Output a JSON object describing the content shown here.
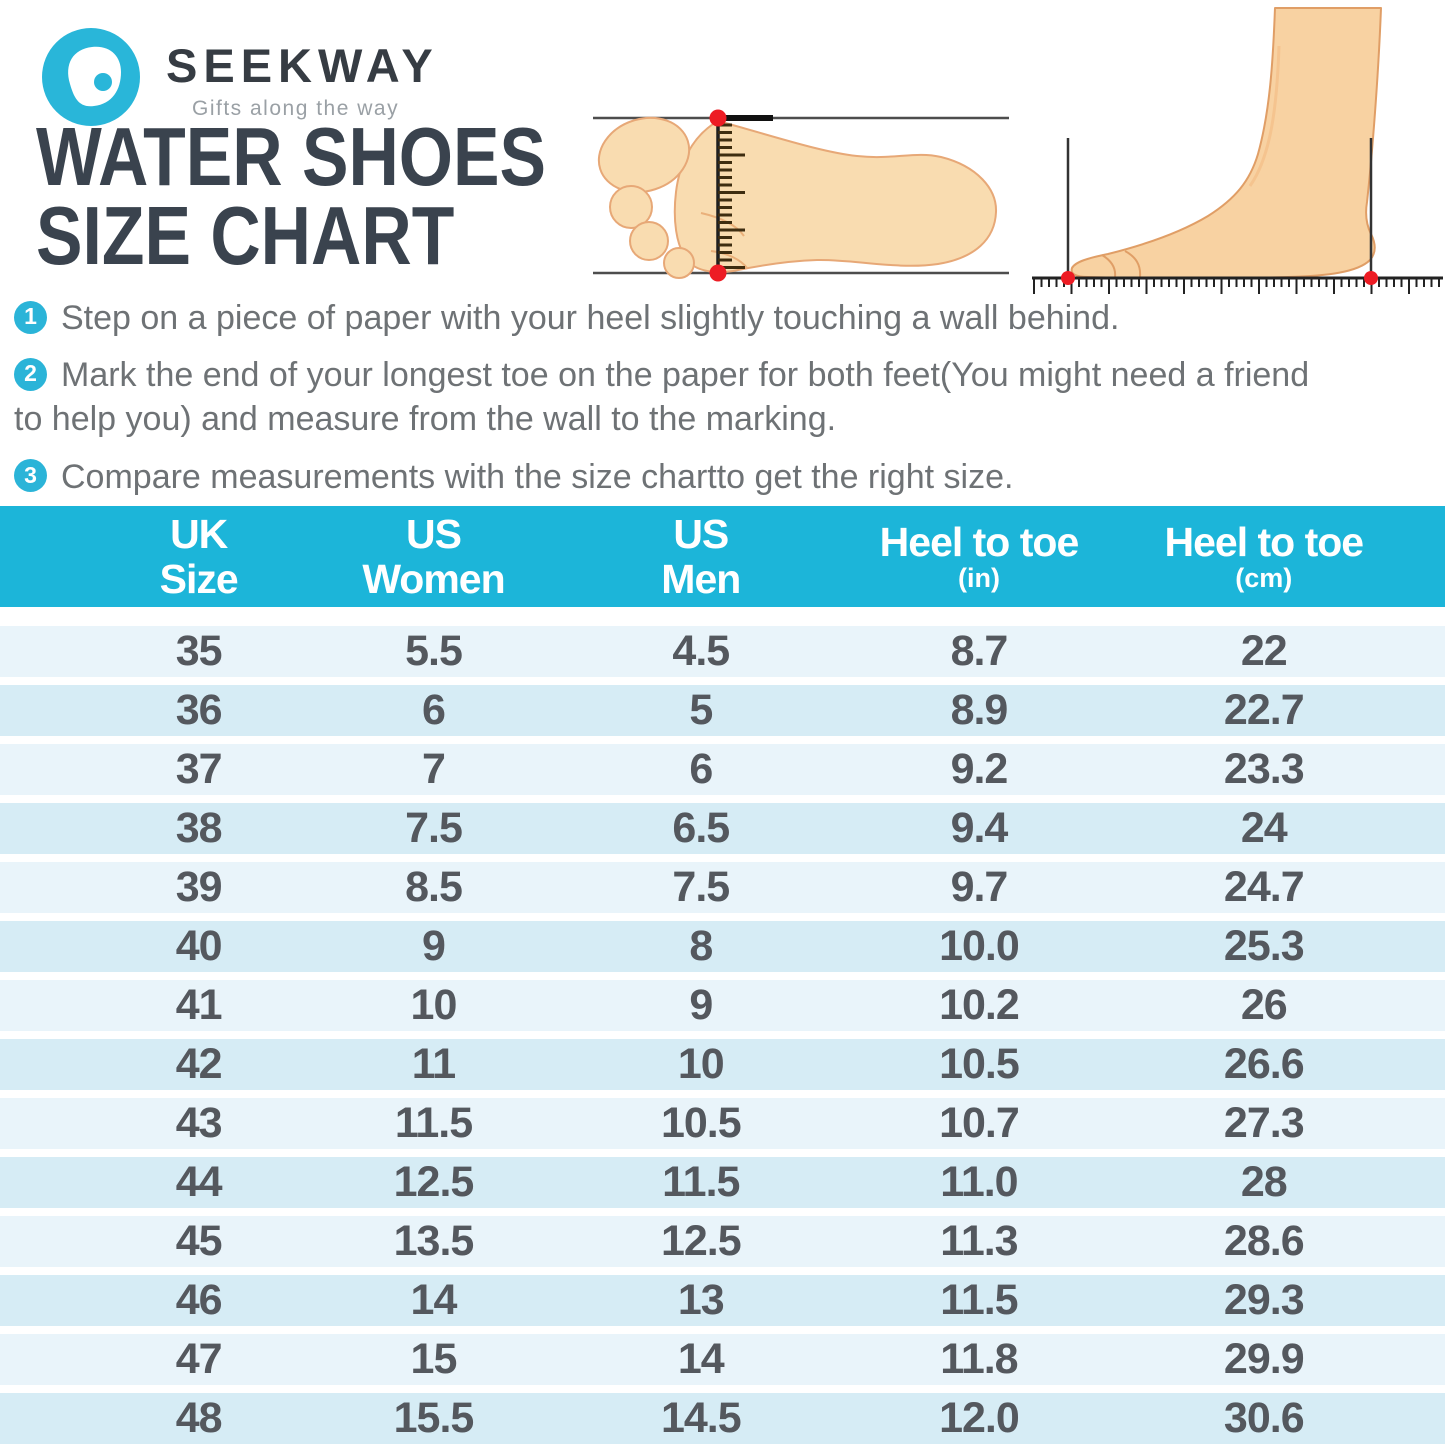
{
  "brand": {
    "name": "SEEKWAY",
    "tagline": "Gifts along the way"
  },
  "title": {
    "line1": "WATER SHOES",
    "line2": "SIZE CHART"
  },
  "instructions": [
    {
      "number": "1",
      "text": "Step on a piece of paper with your heel slightly touching a wall behind."
    },
    {
      "number": "2",
      "text": "Mark the end of your longest toe on the paper for both feet(You might need a friend to help you) and measure from the wall to the marking."
    },
    {
      "number": "3",
      "text": "Compare measurements with the size chartto get the right size."
    }
  ],
  "table_headers": [
    {
      "line1": "UK",
      "line2": "Size",
      "line2_style": "big"
    },
    {
      "line1": "US",
      "line2": "Women",
      "line2_style": "big"
    },
    {
      "line1": "US",
      "line2": "Men",
      "line2_style": "big"
    },
    {
      "line1": "Heel to toe",
      "line2": "(in)",
      "line2_style": "small"
    },
    {
      "line1": "Heel to toe",
      "line2": "(cm)",
      "line2_style": "small"
    }
  ],
  "chart_data": {
    "type": "table",
    "title": "WATER SHOES SIZE CHART",
    "columns": [
      "UK Size",
      "US Women",
      "US Men",
      "Heel to toe (in)",
      "Heel to toe (cm)"
    ],
    "rows": [
      [
        "35",
        "5.5",
        "4.5",
        "8.7",
        "22"
      ],
      [
        "36",
        "6",
        "5",
        "8.9",
        "22.7"
      ],
      [
        "37",
        "7",
        "6",
        "9.2",
        "23.3"
      ],
      [
        "38",
        "7.5",
        "6.5",
        "9.4",
        "24"
      ],
      [
        "39",
        "8.5",
        "7.5",
        "9.7",
        "24.7"
      ],
      [
        "40",
        "9",
        "8",
        "10.0",
        "25.3"
      ],
      [
        "41",
        "10",
        "9",
        "10.2",
        "26"
      ],
      [
        "42",
        "11",
        "10",
        "10.5",
        "26.6"
      ],
      [
        "43",
        "11.5",
        "10.5",
        "10.7",
        "27.3"
      ],
      [
        "44",
        "12.5",
        "11.5",
        "11.0",
        "28"
      ],
      [
        "45",
        "13.5",
        "12.5",
        "11.3",
        "28.6"
      ],
      [
        "46",
        "14",
        "13",
        "11.5",
        "29.3"
      ],
      [
        "47",
        "15",
        "14",
        "11.8",
        "29.9"
      ],
      [
        "48",
        "15.5",
        "14.5",
        "12.0",
        "30.6"
      ]
    ]
  },
  "icons": {
    "logo": "seekway-logo-icon",
    "foot_width": "foot-sole-width-ruler-illustration",
    "foot_length": "foot-side-length-ruler-illustration",
    "marker": "red-dot-marker"
  },
  "colors": {
    "accent_cyan": "#1cb5d9",
    "logo_cyan": "#29b6d9",
    "title_text": "#3a434e",
    "body_text": "#6e7275",
    "table_text": "#54585e",
    "row_light": "#e9f4fa",
    "row_dark": "#d6ecf5",
    "marker_red": "#ed1c24",
    "skin_fill": "#f9dcb0",
    "skin_outline": "#e7a877"
  }
}
